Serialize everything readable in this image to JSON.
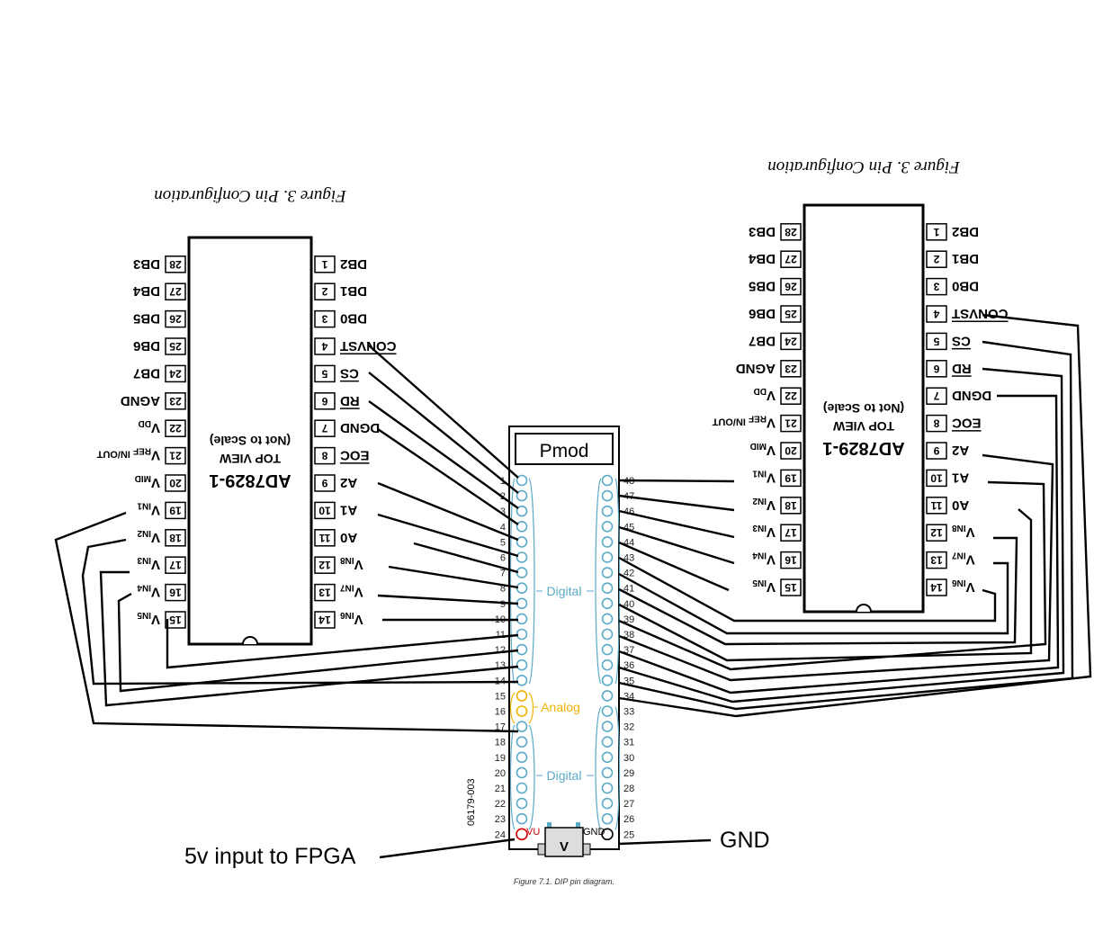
{
  "left_chip": {
    "figure_caption": "Figure 3. Pin Configuration",
    "part": "AD7829-1",
    "view": "TOP VIEW",
    "scale_note": "(Not to Scale)",
    "left_pins": [
      {
        "num": "14",
        "sig": "VIN6"
      },
      {
        "num": "13",
        "sig": "VIN7"
      },
      {
        "num": "12",
        "sig": "VIN8"
      },
      {
        "num": "11",
        "sig": "A0"
      },
      {
        "num": "10",
        "sig": "A1"
      },
      {
        "num": "9",
        "sig": "A2"
      },
      {
        "num": "8",
        "sig": "EOC"
      },
      {
        "num": "7",
        "sig": "DGND"
      },
      {
        "num": "6",
        "sig": "RD"
      },
      {
        "num": "5",
        "sig": "CS"
      },
      {
        "num": "4",
        "sig": "CONVST"
      },
      {
        "num": "3",
        "sig": "DB0"
      },
      {
        "num": "2",
        "sig": "DB1"
      },
      {
        "num": "1",
        "sig": "DB2"
      }
    ],
    "right_pins": [
      {
        "num": "15",
        "sig": "VIN5"
      },
      {
        "num": "16",
        "sig": "VIN4"
      },
      {
        "num": "17",
        "sig": "VIN3"
      },
      {
        "num": "18",
        "sig": "VIN2"
      },
      {
        "num": "19",
        "sig": "VIN1"
      },
      {
        "num": "20",
        "sig": "VMID"
      },
      {
        "num": "21",
        "sig": "VREF IN/OUT"
      },
      {
        "num": "22",
        "sig": "VDD"
      },
      {
        "num": "23",
        "sig": "AGND"
      },
      {
        "num": "24",
        "sig": "DB7"
      },
      {
        "num": "25",
        "sig": "DB6"
      },
      {
        "num": "26",
        "sig": "DB5"
      },
      {
        "num": "27",
        "sig": "DB4"
      },
      {
        "num": "28",
        "sig": "DB3"
      }
    ]
  },
  "right_chip": {
    "figure_caption": "Figure 3. Pin Configuration",
    "part": "AD7829-1",
    "view": "TOP VIEW",
    "scale_note": "(Not to Scale)"
  },
  "pmod": {
    "title": "Pmod",
    "digital_label": "Digital",
    "analog_label": "Analog",
    "digital_label_2": "Digital",
    "left_numbers": [
      "1",
      "2",
      "3",
      "4",
      "5",
      "6",
      "7",
      "8",
      "9",
      "10",
      "11",
      "12",
      "13",
      "14",
      "15",
      "16",
      "17",
      "18",
      "19",
      "20",
      "21",
      "22",
      "23",
      "24"
    ],
    "right_numbers": [
      "48",
      "47",
      "46",
      "45",
      "44",
      "43",
      "42",
      "41",
      "40",
      "39",
      "38",
      "37",
      "36",
      "35",
      "34",
      "33",
      "32",
      "31",
      "30",
      "29",
      "28",
      "27",
      "26",
      "25"
    ],
    "vu_label": "VU",
    "gnd_label": "GND",
    "usb_label": "V",
    "part_code": "06179-003",
    "caption": "Figure 7.1. DIP pin diagram.",
    "colors": {
      "digital": "#5aaac8",
      "analog": "#f0b400",
      "vu": "#d00000"
    }
  },
  "annotations": {
    "five_volt": "5v input to FPGA",
    "gnd": "GND"
  }
}
